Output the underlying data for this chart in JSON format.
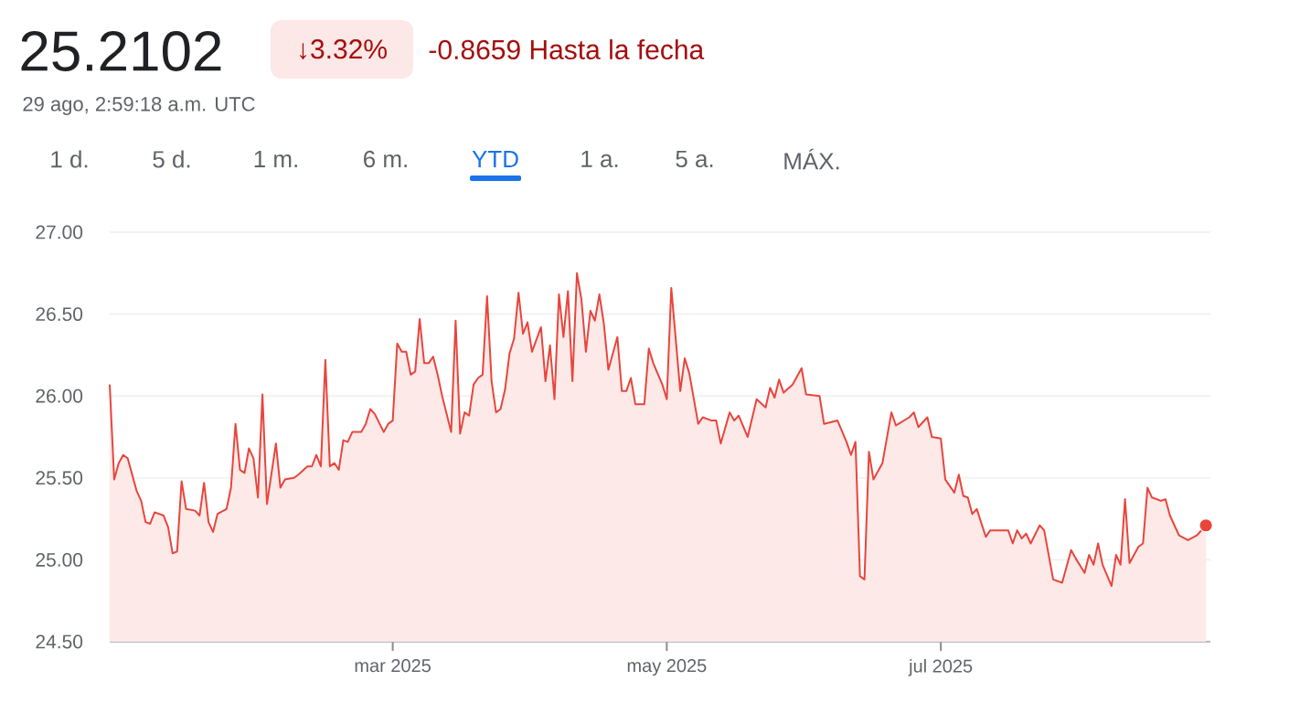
{
  "chart_data": {
    "type": "area",
    "title": "25.2102",
    "annotations": [
      "↓3.32%",
      "-0.8659 Hasta la fecha",
      "29 ago, 2:59:18 a.m. UTC",
      "1 d.",
      "5 d.",
      "1 m.",
      "6 m.",
      "YTD",
      "1 a.",
      "5 a.",
      "MÁX."
    ],
    "xlim": [
      "2024-12-28",
      "2025-08-30"
    ],
    "xticks": [
      {
        "value": "2025-03-01",
        "label": "mar 2025"
      },
      {
        "value": "2025-05-01",
        "label": "may 2025"
      },
      {
        "value": "2025-07-01",
        "label": "jul 2025"
      }
    ],
    "ylim": [
      24.5,
      27.0
    ],
    "yticks": [
      {
        "value": 24.5,
        "label": "24.50"
      },
      {
        "value": 25.0,
        "label": "25.00"
      },
      {
        "value": 25.5,
        "label": "25.50"
      },
      {
        "value": 26.0,
        "label": "26.00"
      },
      {
        "value": 26.5,
        "label": "26.50"
      },
      {
        "value": 27.0,
        "label": "27.00"
      }
    ],
    "grid": "y",
    "marker": "none",
    "series": [
      {
        "color": "#e8453c",
        "x": [
          "2024-12-28",
          "2024-12-29",
          "2024-12-30",
          "2024-12-31",
          "2025-01-01",
          "2025-01-03",
          "2025-01-04",
          "2025-01-05",
          "2025-01-06",
          "2025-01-07",
          "2025-01-09",
          "2025-01-10",
          "2025-01-11",
          "2025-01-12",
          "2025-01-13",
          "2025-01-14",
          "2025-01-16",
          "2025-01-17",
          "2025-01-18",
          "2025-01-19",
          "2025-01-20",
          "2025-01-21",
          "2025-01-23",
          "2025-01-24",
          "2025-01-25",
          "2025-01-26",
          "2025-01-27",
          "2025-01-28",
          "2025-01-29",
          "2025-01-30",
          "2025-01-31",
          "2025-02-01",
          "2025-02-03",
          "2025-02-04",
          "2025-02-05",
          "2025-02-07",
          "2025-02-08",
          "2025-02-10",
          "2025-02-11",
          "2025-02-12",
          "2025-02-13",
          "2025-02-14",
          "2025-02-15",
          "2025-02-16",
          "2025-02-17",
          "2025-02-18",
          "2025-02-19",
          "2025-02-20",
          "2025-02-22",
          "2025-02-23",
          "2025-02-24",
          "2025-02-25",
          "2025-02-27",
          "2025-02-28",
          "2025-03-01",
          "2025-03-02",
          "2025-03-03",
          "2025-03-04",
          "2025-03-05",
          "2025-03-06",
          "2025-03-07",
          "2025-03-08",
          "2025-03-09",
          "2025-03-10",
          "2025-03-11",
          "2025-03-12",
          "2025-03-14",
          "2025-03-15",
          "2025-03-16",
          "2025-03-17",
          "2025-03-18",
          "2025-03-19",
          "2025-03-20",
          "2025-03-21",
          "2025-03-22",
          "2025-03-23",
          "2025-03-24",
          "2025-03-25",
          "2025-03-26",
          "2025-03-27",
          "2025-03-28",
          "2025-03-29",
          "2025-03-30",
          "2025-03-31",
          "2025-04-01",
          "2025-04-03",
          "2025-04-04",
          "2025-04-05",
          "2025-04-06",
          "2025-04-07",
          "2025-04-08",
          "2025-04-09",
          "2025-04-10",
          "2025-04-11",
          "2025-04-12",
          "2025-04-13",
          "2025-04-14",
          "2025-04-15",
          "2025-04-16",
          "2025-04-17",
          "2025-04-18",
          "2025-04-20",
          "2025-04-21",
          "2025-04-22",
          "2025-04-23",
          "2025-04-24",
          "2025-04-26",
          "2025-04-27",
          "2025-04-28",
          "2025-04-30",
          "2025-05-01",
          "2025-05-02",
          "2025-05-04",
          "2025-05-05",
          "2025-05-06",
          "2025-05-08",
          "2025-05-09",
          "2025-05-11",
          "2025-05-12",
          "2025-05-13",
          "2025-05-15",
          "2025-05-16",
          "2025-05-17",
          "2025-05-19",
          "2025-05-21",
          "2025-05-23",
          "2025-05-24",
          "2025-05-25",
          "2025-05-26",
          "2025-05-27",
          "2025-05-29",
          "2025-05-31",
          "2025-06-01",
          "2025-06-04",
          "2025-06-05",
          "2025-06-08",
          "2025-06-10",
          "2025-06-11",
          "2025-06-12",
          "2025-06-13",
          "2025-06-14",
          "2025-06-15",
          "2025-06-16",
          "2025-06-18",
          "2025-06-20",
          "2025-06-21",
          "2025-06-24",
          "2025-06-25",
          "2025-06-26",
          "2025-06-28",
          "2025-06-29",
          "2025-07-01",
          "2025-07-02",
          "2025-07-04",
          "2025-07-05",
          "2025-07-06",
          "2025-07-07",
          "2025-07-08",
          "2025-07-09",
          "2025-07-11",
          "2025-07-12",
          "2025-07-16",
          "2025-07-17",
          "2025-07-18",
          "2025-07-19",
          "2025-07-20",
          "2025-07-21",
          "2025-07-23",
          "2025-07-24",
          "2025-07-26",
          "2025-07-28",
          "2025-07-30",
          "2025-07-31",
          "2025-08-02",
          "2025-08-03",
          "2025-08-04",
          "2025-08-05",
          "2025-08-06",
          "2025-08-08",
          "2025-08-09",
          "2025-08-10",
          "2025-08-11",
          "2025-08-12",
          "2025-08-14",
          "2025-08-15",
          "2025-08-16",
          "2025-08-17",
          "2025-08-19",
          "2025-08-20",
          "2025-08-21",
          "2025-08-23",
          "2025-08-25",
          "2025-08-27",
          "2025-08-28",
          "2025-08-29"
        ],
        "values": [
          26.07,
          25.49,
          25.59,
          25.64,
          25.62,
          25.42,
          25.36,
          25.23,
          25.22,
          25.29,
          25.27,
          25.2,
          25.04,
          25.05,
          25.48,
          25.31,
          25.3,
          25.27,
          25.47,
          25.23,
          25.17,
          25.28,
          25.31,
          25.44,
          25.83,
          25.55,
          25.53,
          25.68,
          25.62,
          25.38,
          26.01,
          25.34,
          25.71,
          25.44,
          25.49,
          25.5,
          25.52,
          25.57,
          25.57,
          25.64,
          25.57,
          26.22,
          25.57,
          25.59,
          25.55,
          25.73,
          25.72,
          25.78,
          25.78,
          25.83,
          25.92,
          25.89,
          25.78,
          25.83,
          25.85,
          26.32,
          26.27,
          26.27,
          26.13,
          26.15,
          26.47,
          26.2,
          26.2,
          26.24,
          26.13,
          26.0,
          25.78,
          26.46,
          25.77,
          25.9,
          25.88,
          26.07,
          26.11,
          26.13,
          26.61,
          26.09,
          25.9,
          25.92,
          26.04,
          26.26,
          26.35,
          26.63,
          26.38,
          26.45,
          26.27,
          26.42,
          26.09,
          26.31,
          25.98,
          26.62,
          26.36,
          26.64,
          26.09,
          26.75,
          26.59,
          26.27,
          26.52,
          26.46,
          26.62,
          26.44,
          26.16,
          26.36,
          26.03,
          26.03,
          26.11,
          25.95,
          25.95,
          26.29,
          26.2,
          26.07,
          25.98,
          26.66,
          26.03,
          26.23,
          26.14,
          25.83,
          25.87,
          25.85,
          25.85,
          25.71,
          25.9,
          25.85,
          25.88,
          25.75,
          25.98,
          25.93,
          26.05,
          25.99,
          26.1,
          26.02,
          26.07,
          26.17,
          26.01,
          26.0,
          25.83,
          25.85,
          25.72,
          25.64,
          25.72,
          24.9,
          24.88,
          25.66,
          25.49,
          25.59,
          25.9,
          25.82,
          25.87,
          25.9,
          25.81,
          25.87,
          25.75,
          25.74,
          25.49,
          25.41,
          25.52,
          25.39,
          25.38,
          25.28,
          25.31,
          25.14,
          25.18,
          25.18,
          25.1,
          25.18,
          25.13,
          25.16,
          25.1,
          25.21,
          25.18,
          24.88,
          24.86,
          25.06,
          25.01,
          24.92,
          25.03,
          24.97,
          25.1,
          24.97,
          24.84,
          25.03,
          24.97,
          25.37,
          24.98,
          25.08,
          25.1,
          25.44,
          25.38,
          25.36,
          25.37,
          25.27,
          25.15,
          25.12,
          25.15,
          25.18,
          25.21
        ]
      },
      {
        "type": "scatter",
        "color": "#e8453c",
        "marker": "circle",
        "x": [
          "2025-08-29"
        ],
        "values": [
          25.21
        ]
      }
    ]
  }
}
